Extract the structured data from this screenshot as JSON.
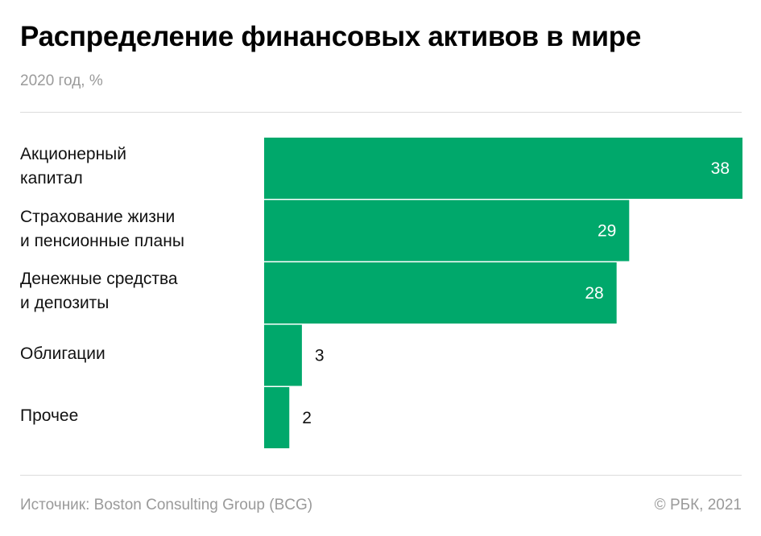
{
  "title": "Распределение финансовых активов в мире",
  "subtitle": "2020 год, %",
  "chart_data": {
    "type": "bar",
    "orientation": "horizontal",
    "categories": [
      [
        "Акционерный",
        "капитал"
      ],
      [
        "Страхование жизни",
        "и пенсионные планы"
      ],
      [
        "Денежные средства",
        "и депозиты"
      ],
      [
        "Облигации"
      ],
      [
        "Прочее"
      ]
    ],
    "values": [
      38,
      29,
      28,
      3,
      2
    ],
    "xlim": [
      0,
      38
    ],
    "grid": false,
    "bar_color": "#00A86B"
  },
  "footer": {
    "source": "Источник: Boston Consulting Group (BCG)",
    "copyright": "© РБК, 2021"
  }
}
